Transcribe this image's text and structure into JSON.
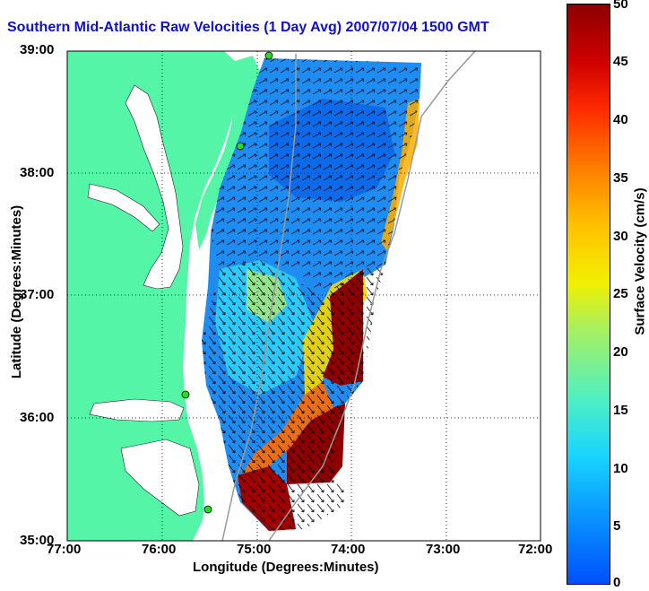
{
  "title": "Southern Mid-Atlantic Raw Velocities (1 Day Avg) 2007/07/04 1500 GMT",
  "x_axis": {
    "label": "Longitude (Degrees:Minutes)",
    "ticks": [
      "77:00",
      "76:00",
      "75:00",
      "74:00",
      "73:00",
      "72:00"
    ]
  },
  "y_axis": {
    "label": "Latitude (Degrees:Minutes)",
    "ticks": [
      "39:00",
      "38:00",
      "37:00",
      "36:00",
      "35:00"
    ]
  },
  "colorbar": {
    "label": "Surface Velocity (cm/s)",
    "ticks": [
      "50",
      "45",
      "40",
      "35",
      "30",
      "25",
      "20",
      "15",
      "10",
      "5",
      "0"
    ],
    "range": [
      0,
      50
    ]
  },
  "colors": {
    "land": "#55f5a8",
    "title": "#1010d0",
    "fast_current": "#8c0000",
    "slow_current": "#0a7cf0"
  }
}
